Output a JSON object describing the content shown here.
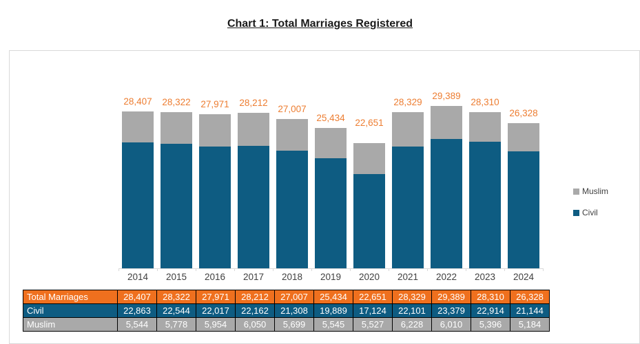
{
  "title": "Chart 1: Total Marriages Registered",
  "colors": {
    "civil": "#0E5C82",
    "muslim": "#A9A9A9",
    "data_label": "#ED7D31",
    "table_total_bg": "#EF701E",
    "axis": "#D9D9D9"
  },
  "legend": {
    "items": [
      {
        "label": "Muslim",
        "color_key": "muslim"
      },
      {
        "label": "Civil",
        "color_key": "civil"
      }
    ]
  },
  "chart_data": {
    "type": "bar",
    "stacked": true,
    "title": "Chart 1: Total Marriages Registered",
    "categories": [
      "2014",
      "2015",
      "2016",
      "2017",
      "2018",
      "2019",
      "2020",
      "2021",
      "2022",
      "2023",
      "2024"
    ],
    "series": [
      {
        "name": "Civil",
        "color_key": "civil",
        "values": [
          22863,
          22544,
          22017,
          22162,
          21308,
          19889,
          17124,
          22101,
          23379,
          22914,
          21144
        ]
      },
      {
        "name": "Muslim",
        "color_key": "muslim",
        "values": [
          5544,
          5778,
          5954,
          6050,
          5699,
          5545,
          5527,
          6228,
          6010,
          5396,
          5184
        ]
      }
    ],
    "totals": [
      28407,
      28322,
      27971,
      28212,
      27007,
      25434,
      22651,
      28329,
      29389,
      28310,
      26328
    ],
    "total_labels": [
      "28,407",
      "28,322",
      "27,971",
      "28,212",
      "27,007",
      "25,434",
      "22,651",
      "28,329",
      "29,389",
      "28,310",
      "26,328"
    ],
    "legend_position": "right",
    "grid": false,
    "ylim": [
      0,
      31000
    ]
  },
  "table": {
    "rows": [
      {
        "label": "Total Marriages",
        "color_key": "table_total_bg",
        "values": [
          "28,407",
          "28,322",
          "27,971",
          "28,212",
          "27,007",
          "25,434",
          "22,651",
          "28,329",
          "29,389",
          "28,310",
          "26,328"
        ]
      },
      {
        "label": "Civil",
        "color_key": "civil",
        "values": [
          "22,863",
          "22,544",
          "22,017",
          "22,162",
          "21,308",
          "19,889",
          "17,124",
          "22,101",
          "23,379",
          "22,914",
          "21,144"
        ]
      },
      {
        "label": "Muslim",
        "color_key": "muslim",
        "values": [
          "5,544",
          "5,778",
          "5,954",
          "6,050",
          "5,699",
          "5,545",
          "5,527",
          "6,228",
          "6,010",
          "5,396",
          "5,184"
        ]
      }
    ]
  }
}
